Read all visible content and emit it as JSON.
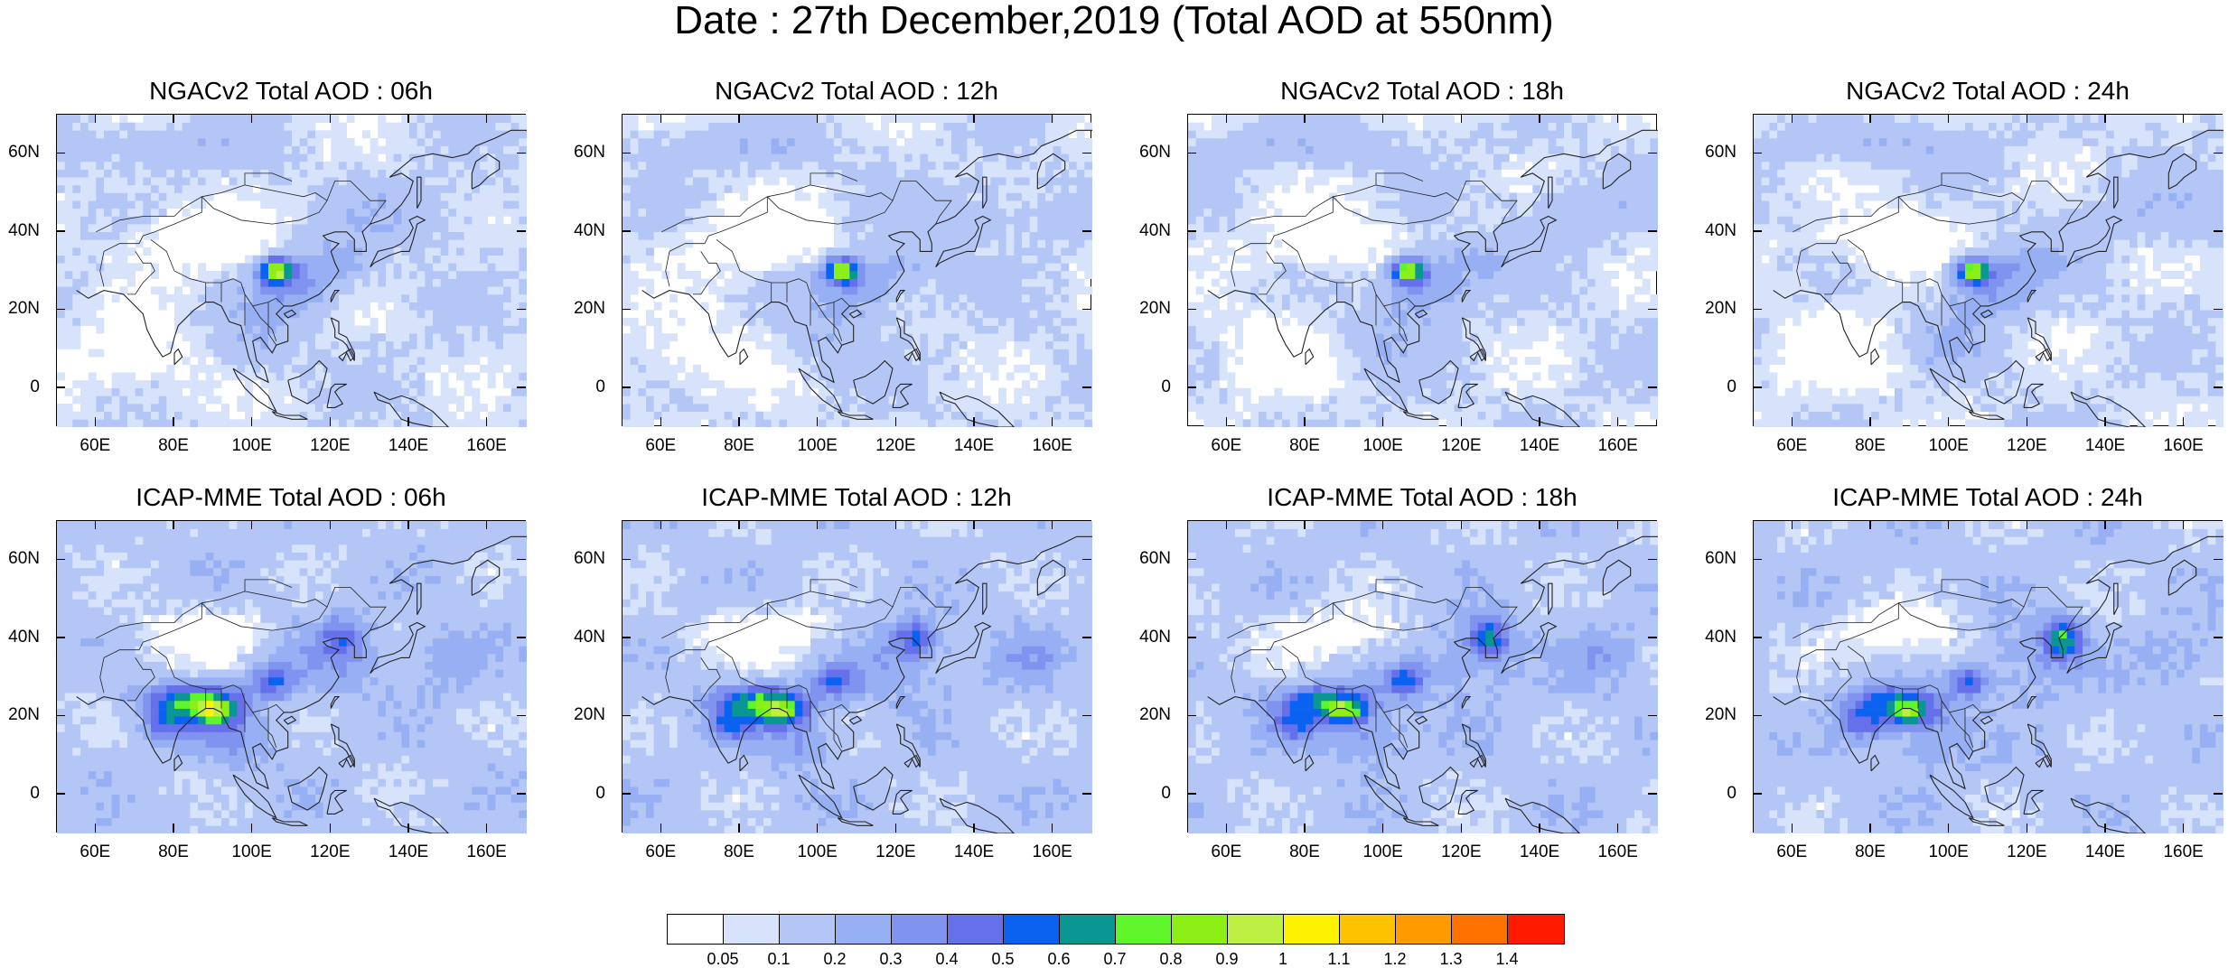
{
  "title": "Date : 27th December,2019 (Total AOD at 550nm)",
  "panels": [
    {
      "title": "NGACv2 Total AOD : 06h",
      "model": "NGACv2",
      "hour": "06h"
    },
    {
      "title": "NGACv2 Total AOD : 12h",
      "model": "NGACv2",
      "hour": "12h"
    },
    {
      "title": "NGACv2 Total AOD : 18h",
      "model": "NGACv2",
      "hour": "18h"
    },
    {
      "title": "NGACv2 Total AOD : 24h",
      "model": "NGACv2",
      "hour": "24h"
    },
    {
      "title": "ICAP-MME Total AOD : 06h",
      "model": "ICAP-MME",
      "hour": "06h"
    },
    {
      "title": "ICAP-MME Total AOD : 12h",
      "model": "ICAP-MME",
      "hour": "12h"
    },
    {
      "title": "ICAP-MME Total AOD : 18h",
      "model": "ICAP-MME",
      "hour": "18h"
    },
    {
      "title": "ICAP-MME Total AOD : 24h",
      "model": "ICAP-MME",
      "hour": "24h"
    }
  ],
  "lat_ticks": [
    "60N",
    "40N",
    "20N",
    "0"
  ],
  "lat_values": [
    60,
    40,
    20,
    0
  ],
  "lon_ticks": [
    "60E",
    "80E",
    "100E",
    "120E",
    "140E",
    "160E"
  ],
  "lon_values": [
    60,
    80,
    100,
    120,
    140,
    160
  ],
  "map_extent": {
    "lon_min": 50,
    "lon_max": 170,
    "lat_min": -10,
    "lat_max": 70
  },
  "colorbar": {
    "labels": [
      "0.05",
      "0.1",
      "0.2",
      "0.3",
      "0.4",
      "0.5",
      "0.6",
      "0.7",
      "0.8",
      "0.9",
      "1",
      "1.1",
      "1.2",
      "1.3",
      "1.4"
    ],
    "colors": [
      "#ffffff",
      "#d7e3fb",
      "#b4c6f6",
      "#97b0f3",
      "#7f93ef",
      "#6670ea",
      "#0b62f0",
      "#0a9692",
      "#5ef52a",
      "#8cf018",
      "#bef044",
      "#fff200",
      "#ffc200",
      "#ff9a00",
      "#ff7200",
      "#ff1a00"
    ]
  }
}
